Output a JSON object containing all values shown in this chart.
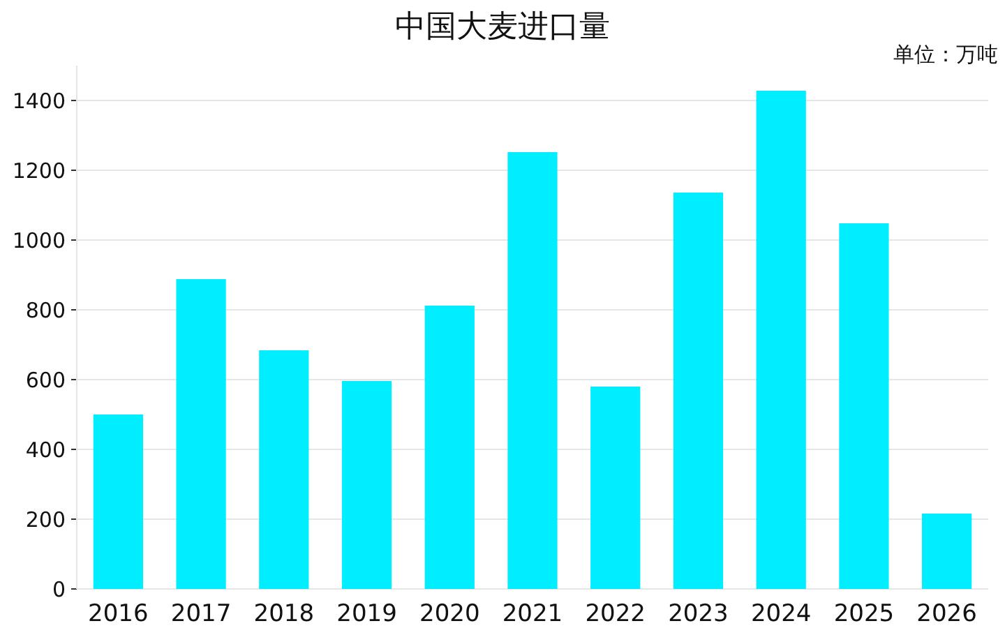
{
  "chart_data": {
    "type": "bar",
    "title": "中国大麦进口量",
    "annotations": [
      "单位：万吨"
    ],
    "categories": [
      "2016",
      "2017",
      "2018",
      "2019",
      "2020",
      "2021",
      "2022",
      "2023",
      "2024",
      "2025",
      "2026"
    ],
    "values": [
      500,
      888,
      684,
      596,
      812,
      1252,
      580,
      1136,
      1428,
      1048,
      216
    ],
    "color": "#00eeff",
    "ylim": [
      0,
      1500
    ],
    "yticks": [
      0,
      200,
      400,
      600,
      800,
      1000,
      1200,
      1400
    ],
    "grid": "y"
  }
}
